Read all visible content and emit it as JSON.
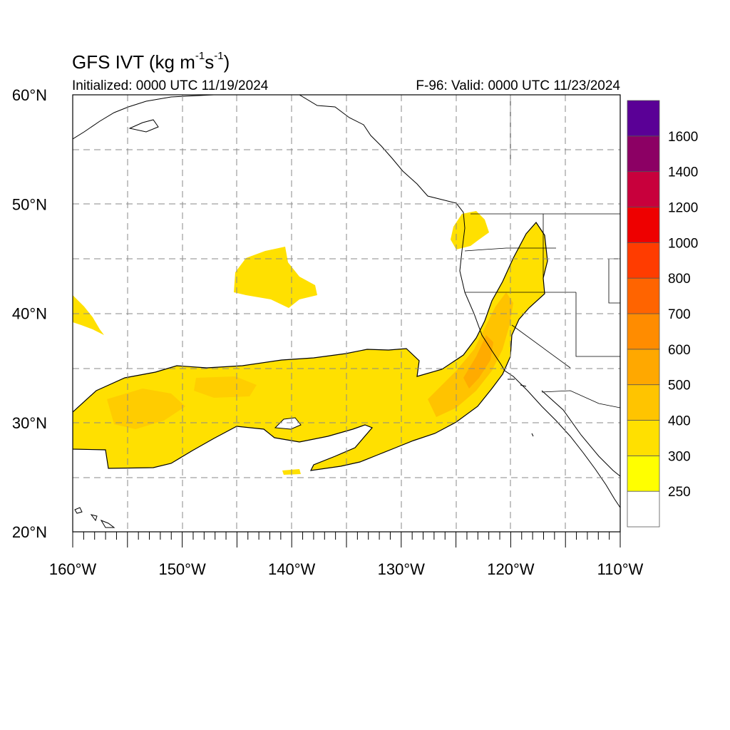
{
  "header": {
    "title_main": "GFS IVT (kg m",
    "title_sup1": "-1",
    "title_mid": "s",
    "title_sup2": "-1",
    "title_end": ")",
    "initialized": "Initialized: 0000 UTC 11/19/2024",
    "valid": "F-96: Valid: 0000 UTC 11/23/2024"
  },
  "map": {
    "lon_range": [
      -160,
      -110
    ],
    "lat_range": [
      20,
      60
    ],
    "lon_labels": [
      {
        "lon": -160,
        "text": "160°W"
      },
      {
        "lon": -150,
        "text": "150°W"
      },
      {
        "lon": -140,
        "text": "140°W"
      },
      {
        "lon": -130,
        "text": "130°W"
      },
      {
        "lon": -120,
        "text": "120°W"
      },
      {
        "lon": -110,
        "text": "110°W"
      }
    ],
    "lat_labels": [
      {
        "lat": 60,
        "text": "60°N"
      },
      {
        "lat": 50,
        "text": "50°N"
      },
      {
        "lat": 40,
        "text": "40°N"
      },
      {
        "lat": 30,
        "text": "30°N"
      },
      {
        "lat": 20,
        "text": "20°N"
      }
    ],
    "gridlines": "dashed, every 5°"
  },
  "colorbar": {
    "levels": [
      "250",
      "300",
      "400",
      "500",
      "600",
      "700",
      "800",
      "1000",
      "1200",
      "1400",
      "1600"
    ],
    "colors": [
      "#ffffff",
      "#ffff00",
      "#ffe000",
      "#ffc400",
      "#ffa800",
      "#ff8c00",
      "#ff6400",
      "#ff3c00",
      "#ee0000",
      "#c8003c",
      "#8c0064",
      "#5a0096"
    ]
  }
}
